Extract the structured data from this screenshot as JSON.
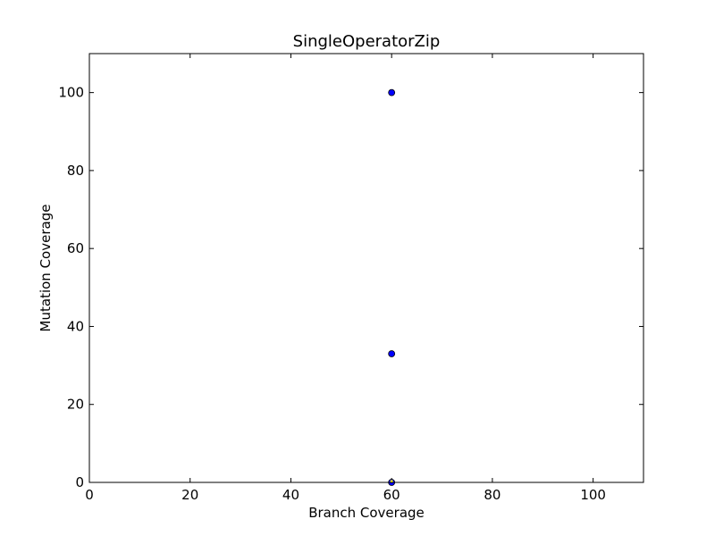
{
  "chart_data": {
    "type": "scatter",
    "title": "SingleOperatorZip",
    "xlabel": "Branch Coverage",
    "ylabel": "Mutation Coverage",
    "xlim": [
      0,
      110
    ],
    "ylim": [
      0,
      110
    ],
    "xticks": [
      0,
      20,
      40,
      60,
      80,
      100
    ],
    "yticks": [
      0,
      20,
      40,
      60,
      80,
      100
    ],
    "grid": false,
    "points": [
      {
        "x": 60,
        "y": 100
      },
      {
        "x": 60,
        "y": 33
      },
      {
        "x": 60,
        "y": 0
      }
    ],
    "marker_color": "#0000ff",
    "marker_edge_color": "#000000",
    "zero_marker_color": "#ffff00"
  }
}
